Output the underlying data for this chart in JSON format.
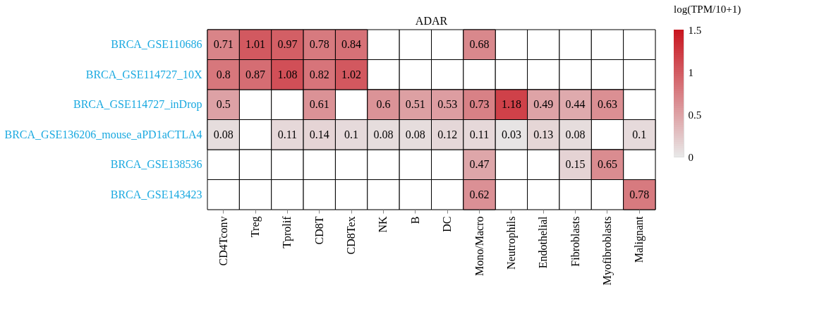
{
  "chart_data": {
    "type": "heatmap",
    "title": "ADAR",
    "clabel": "log(TPM/10+1)",
    "categories": [
      "CD4Tconv",
      "Treg",
      "Tprolif",
      "CD8T",
      "CD8Tex",
      "NK",
      "B",
      "DC",
      "Mono/Macro",
      "Neutrophils",
      "Endothelial",
      "Fibroblasts",
      "Myofibroblasts",
      "Malignant"
    ],
    "y_categories": [
      "BRCA_GSE110686",
      "BRCA_GSE114727_10X",
      "BRCA_GSE114727_inDrop",
      "BRCA_GSE136206_mouse_aPD1aCTLA4",
      "BRCA_GSE138536",
      "BRCA_GSE143423"
    ],
    "cells": [
      [
        0.71,
        1.01,
        0.97,
        0.78,
        0.84,
        null,
        null,
        null,
        0.68,
        null,
        null,
        null,
        null,
        null
      ],
      [
        0.8,
        0.87,
        1.08,
        0.82,
        1.02,
        null,
        null,
        null,
        null,
        null,
        null,
        null,
        null,
        null
      ],
      [
        0.5,
        null,
        null,
        0.61,
        null,
        0.6,
        0.51,
        0.53,
        0.73,
        1.18,
        0.49,
        0.44,
        0.63,
        null
      ],
      [
        0.08,
        null,
        0.11,
        0.14,
        0.1,
        0.08,
        0.08,
        0.12,
        0.11,
        0.03,
        0.13,
        0.08,
        null,
        0.1
      ],
      [
        null,
        null,
        null,
        null,
        null,
        null,
        null,
        null,
        0.47,
        null,
        null,
        0.15,
        0.65,
        null
      ],
      [
        null,
        null,
        null,
        null,
        null,
        null,
        null,
        null,
        0.62,
        null,
        null,
        null,
        null,
        0.78
      ]
    ],
    "data_labels": true,
    "clim": [
      0,
      1.5
    ],
    "cticks": [
      0,
      0.5,
      1,
      1.5
    ]
  }
}
